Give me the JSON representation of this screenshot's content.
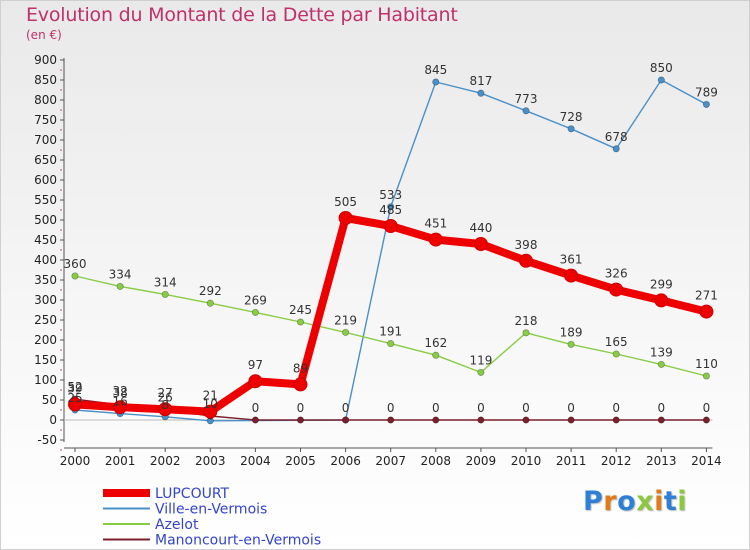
{
  "header": {
    "title": "Evolution du Montant de la Dette par Habitant",
    "subtitle": "(en €)"
  },
  "logo": {
    "text": "Proxiti",
    "colors": [
      "#2e7fd6",
      "#e07b1c",
      "#2e7fd6",
      "#8dc63f",
      "#e07b1c",
      "#2e7fd6",
      "#8dc63f"
    ]
  },
  "chart_data": {
    "type": "line",
    "title": "Evolution du Montant de la Dette par Habitant",
    "subtitle": "(en €)",
    "xlabel": "",
    "ylabel": "",
    "ylim": [
      -50,
      900
    ],
    "ytick_step": 50,
    "grid": false,
    "legend_position": "bottom-left",
    "categories": [
      "2000",
      "2001",
      "2002",
      "2003",
      "2004",
      "2005",
      "2006",
      "2007",
      "2008",
      "2009",
      "2010",
      "2011",
      "2012",
      "2013",
      "2014"
    ],
    "series": [
      {
        "name": "LUPCOURT",
        "color": "#ee0000",
        "emphasis": true,
        "values": [
          39,
          32,
          27,
          21,
          97,
          89,
          505,
          485,
          451,
          440,
          398,
          361,
          326,
          299,
          271
        ],
        "labels": [
          "39",
          "32",
          "27",
          "21",
          "97",
          "89",
          "505",
          "485",
          "451",
          "440",
          "398",
          "361",
          "326",
          "299",
          "271"
        ]
      },
      {
        "name": "Ville-en-Vermois",
        "color": "#4a90c8",
        "emphasis": false,
        "values": [
          25,
          16,
          8,
          -2,
          null,
          null,
          0,
          533,
          845,
          817,
          773,
          728,
          678,
          850,
          789
        ],
        "labels": [
          "25",
          "16",
          "8",
          "",
          "",
          "",
          "",
          "533",
          "845",
          "817",
          "773",
          "728",
          "678",
          "850",
          "789"
        ]
      },
      {
        "name": "Azelot",
        "color": "#88cc44",
        "emphasis": false,
        "values": [
          360,
          334,
          314,
          292,
          269,
          245,
          219,
          191,
          162,
          119,
          218,
          189,
          165,
          139,
          110
        ],
        "labels": [
          "360",
          "334",
          "314",
          "292",
          "269",
          "245",
          "219",
          "191",
          "162",
          "119",
          "218",
          "189",
          "165",
          "139",
          "110"
        ]
      },
      {
        "name": "Manoncourt-en-Vermois",
        "color": "#7a1f2b",
        "emphasis": false,
        "values": [
          52,
          38,
          26,
          10,
          0,
          0,
          0,
          0,
          0,
          0,
          0,
          0,
          0,
          0,
          0
        ],
        "labels": [
          "52",
          "38",
          "26",
          "10",
          "0",
          "0",
          "0",
          "0",
          "0",
          "0",
          "0",
          "0",
          "0",
          "0",
          "0"
        ]
      }
    ]
  }
}
